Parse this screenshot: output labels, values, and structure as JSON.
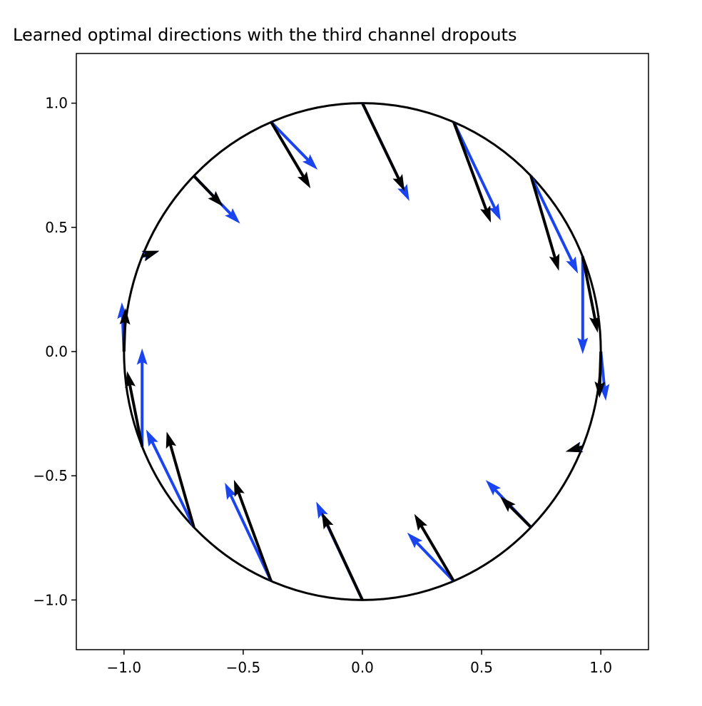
{
  "chart_data": {
    "type": "quiver",
    "title": "Learned optimal directions with the third channel dropouts",
    "xlim": [
      -1.2,
      1.2
    ],
    "ylim": [
      -1.2,
      1.2
    ],
    "xticks": [
      {
        "value": -1.0,
        "label": "−1.0"
      },
      {
        "value": -0.5,
        "label": "−0.5"
      },
      {
        "value": 0.0,
        "label": "0.0"
      },
      {
        "value": 0.5,
        "label": "0.5"
      },
      {
        "value": 1.0,
        "label": "1.0"
      }
    ],
    "yticks": [
      {
        "value": -1.0,
        "label": "−1.0"
      },
      {
        "value": -0.5,
        "label": "−0.5"
      },
      {
        "value": 0.0,
        "label": "0.0"
      },
      {
        "value": 0.5,
        "label": "0.5"
      },
      {
        "value": 1.0,
        "label": "1.0"
      }
    ],
    "circle_radius": 1,
    "x": [
      0.0,
      -0.383,
      -0.707,
      -0.924,
      -1.0,
      -0.924,
      -0.707,
      -0.383,
      0.0,
      0.383,
      0.707,
      0.924,
      1.0,
      0.924,
      0.707,
      0.383
    ],
    "y": [
      1.0,
      0.924,
      0.707,
      0.383,
      0.0,
      -0.383,
      -0.707,
      -0.924,
      -1.0,
      -0.924,
      -0.707,
      -0.383,
      0.0,
      0.383,
      0.707,
      0.924
    ],
    "series": [
      {
        "color": "#1a44f0",
        "u": [
          0.197,
          0.195,
          0.194,
          0.07,
          -0.009,
          0.0,
          -0.2,
          -0.194,
          -0.194,
          -0.195,
          -0.19,
          -0.07,
          0.021,
          0.0,
          0.197,
          0.197
        ],
        "v": [
          -0.394,
          -0.192,
          -0.192,
          0.02,
          0.198,
          0.396,
          0.393,
          0.396,
          0.396,
          0.195,
          0.19,
          -0.02,
          -0.198,
          -0.393,
          -0.393,
          -0.396
        ]
      },
      {
        "color": "#000000",
        "u": [
          0.177,
          0.165,
          0.123,
          0.072,
          0.006,
          -0.063,
          -0.114,
          -0.156,
          -0.171,
          -0.165,
          -0.129,
          -0.072,
          -0.006,
          0.063,
          0.117,
          0.156
        ],
        "v": [
          -0.354,
          -0.267,
          -0.123,
          0.023,
          0.175,
          0.304,
          0.385,
          0.408,
          0.353,
          0.27,
          0.123,
          -0.02,
          -0.187,
          -0.307,
          -0.382,
          -0.405
        ]
      }
    ]
  }
}
